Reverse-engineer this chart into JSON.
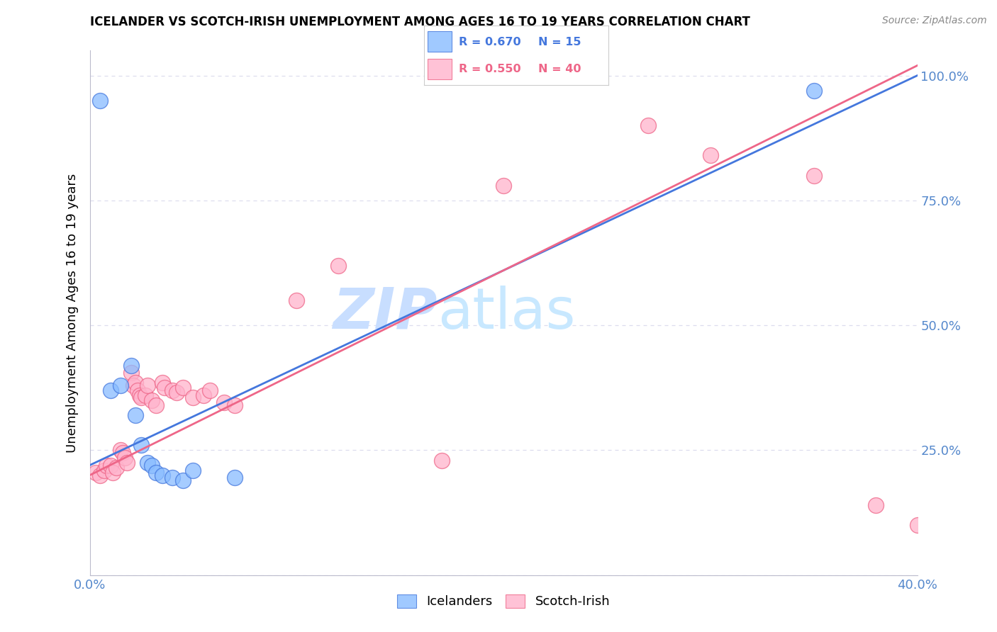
{
  "title": "ICELANDER VS SCOTCH-IRISH UNEMPLOYMENT AMONG AGES 16 TO 19 YEARS CORRELATION CHART",
  "source": "Source: ZipAtlas.com",
  "ylabel": "Unemployment Among Ages 16 to 19 years",
  "legend_blue_r": "R = 0.670",
  "legend_blue_n": "N = 15",
  "legend_pink_r": "R = 0.550",
  "legend_pink_n": "N = 40",
  "legend_label_blue": "Icelanders",
  "legend_label_pink": "Scotch-Irish",
  "watermark_zip": "ZIP",
  "watermark_atlas": "atlas",
  "blue_color": "#89BCFF",
  "blue_line_color": "#4477DD",
  "pink_color": "#FFB3CC",
  "pink_line_color": "#EE6688",
  "blue_scatter": [
    [
      0.5,
      95.0
    ],
    [
      1.0,
      37.0
    ],
    [
      1.5,
      38.0
    ],
    [
      2.0,
      42.0
    ],
    [
      2.2,
      32.0
    ],
    [
      2.5,
      26.0
    ],
    [
      2.8,
      22.5
    ],
    [
      3.0,
      22.0
    ],
    [
      3.2,
      20.5
    ],
    [
      3.5,
      20.0
    ],
    [
      4.0,
      19.5
    ],
    [
      4.5,
      19.0
    ],
    [
      5.0,
      21.0
    ],
    [
      7.0,
      19.5
    ],
    [
      35.0,
      97.0
    ]
  ],
  "pink_scatter": [
    [
      0.3,
      20.5
    ],
    [
      0.5,
      20.0
    ],
    [
      0.7,
      21.0
    ],
    [
      0.8,
      22.0
    ],
    [
      1.0,
      22.0
    ],
    [
      1.1,
      20.5
    ],
    [
      1.3,
      21.5
    ],
    [
      1.5,
      25.0
    ],
    [
      1.6,
      24.5
    ],
    [
      1.7,
      23.5
    ],
    [
      1.8,
      22.5
    ],
    [
      2.0,
      40.5
    ],
    [
      2.1,
      38.0
    ],
    [
      2.2,
      38.5
    ],
    [
      2.3,
      37.0
    ],
    [
      2.4,
      36.0
    ],
    [
      2.5,
      35.5
    ],
    [
      2.7,
      36.0
    ],
    [
      2.8,
      38.0
    ],
    [
      3.0,
      35.0
    ],
    [
      3.2,
      34.0
    ],
    [
      3.5,
      38.5
    ],
    [
      3.6,
      37.5
    ],
    [
      4.0,
      37.0
    ],
    [
      4.2,
      36.5
    ],
    [
      4.5,
      37.5
    ],
    [
      5.0,
      35.5
    ],
    [
      5.5,
      36.0
    ],
    [
      5.8,
      37.0
    ],
    [
      6.5,
      34.5
    ],
    [
      7.0,
      34.0
    ],
    [
      10.0,
      55.0
    ],
    [
      12.0,
      62.0
    ],
    [
      17.0,
      23.0
    ],
    [
      20.0,
      78.0
    ],
    [
      27.0,
      90.0
    ],
    [
      30.0,
      84.0
    ],
    [
      35.0,
      80.0
    ],
    [
      38.0,
      14.0
    ],
    [
      40.0,
      10.0
    ]
  ],
  "xlim": [
    0.0,
    40.0
  ],
  "ylim": [
    0.0,
    105.0
  ],
  "blue_line_x": [
    0.0,
    40.0
  ],
  "blue_line_y": [
    22.0,
    100.0
  ],
  "pink_line_x": [
    0.0,
    40.0
  ],
  "pink_line_y": [
    20.0,
    102.0
  ],
  "yticks": [
    0,
    25,
    50,
    75,
    100
  ],
  "ytick_labels": [
    "",
    "25.0%",
    "50.0%",
    "75.0%",
    "100.0%"
  ],
  "xtick_positions": [
    0,
    4,
    8,
    12,
    16,
    20,
    24,
    28,
    32,
    36,
    40
  ],
  "xtick_labels_show": {
    "0": "0.0%",
    "40": "40.0%"
  },
  "background_color": "#FFFFFF",
  "grid_color": "#DDDDEE",
  "tick_color": "#5588CC"
}
